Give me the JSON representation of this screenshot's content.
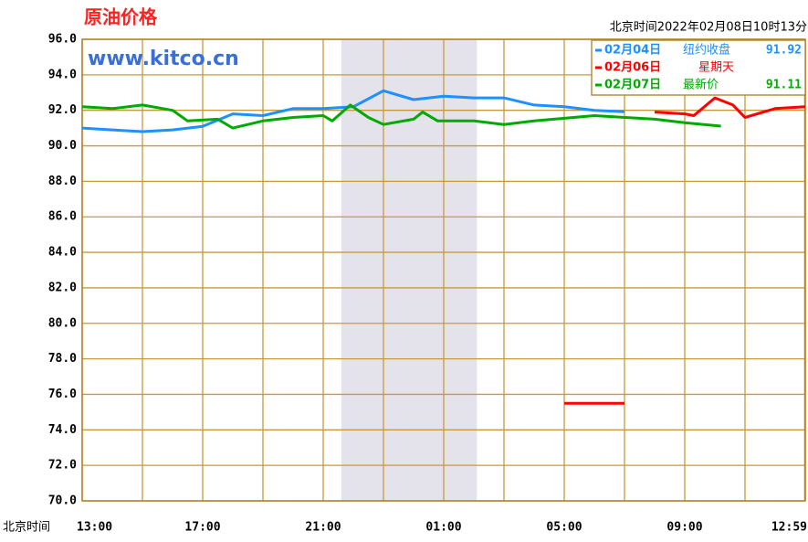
{
  "chart_data": {
    "type": "line",
    "title": "原油价格",
    "watermark": "www.kitco.cn",
    "timestamp": "北京时间2022年02月08日10时13分",
    "x_label": "北京时间",
    "xlim": [
      0,
      24
    ],
    "xticks": [
      {
        "value": 0,
        "label": "13:00"
      },
      {
        "value": 4,
        "label": "17:00"
      },
      {
        "value": 8,
        "label": "21:00"
      },
      {
        "value": 12,
        "label": "01:00"
      },
      {
        "value": 16,
        "label": "05:00"
      },
      {
        "value": 20,
        "label": "09:00"
      },
      {
        "value": 23.98,
        "label": "12:59"
      }
    ],
    "x_minor_grid": [
      2,
      6,
      10,
      14,
      18,
      22,
      24
    ],
    "shaded_range": [
      8.6,
      13.1
    ],
    "ylim": [
      70,
      96
    ],
    "yticks": [
      {
        "value": 70,
        "label": "70.0"
      },
      {
        "value": 72,
        "label": "72.0"
      },
      {
        "value": 74,
        "label": "74.0"
      },
      {
        "value": 76,
        "label": "76.0"
      },
      {
        "value": 78,
        "label": "78.0"
      },
      {
        "value": 80,
        "label": "80.0"
      },
      {
        "value": 82,
        "label": "82.0"
      },
      {
        "value": 84,
        "label": "84.0"
      },
      {
        "value": 86,
        "label": "86.0"
      },
      {
        "value": 88,
        "label": "88.0"
      },
      {
        "value": 90,
        "label": "90.0"
      },
      {
        "value": 92,
        "label": "92.0"
      },
      {
        "value": 94,
        "label": "94.0"
      },
      {
        "value": 96,
        "label": "96.0"
      }
    ],
    "grid": true,
    "legend_position": "top-right",
    "series": [
      {
        "name": "02月04日",
        "status": "纽约收盘",
        "price": 91.92,
        "color": "#1e90ff",
        "x": [
          0,
          1,
          2,
          3,
          4,
          5,
          6,
          7,
          8,
          9,
          10,
          11,
          12,
          13,
          14,
          15,
          16,
          17,
          18
        ],
        "values": [
          91.0,
          90.9,
          90.8,
          90.9,
          91.1,
          91.8,
          91.7,
          92.1,
          92.1,
          92.2,
          93.1,
          92.6,
          92.8,
          92.7,
          92.7,
          92.3,
          92.2,
          92.0,
          91.92
        ]
      },
      {
        "name": "02月06日",
        "status": "星期天",
        "color": "#ff0000",
        "x": [
          16,
          18,
          18,
          19,
          20,
          20.3,
          21,
          21.6,
          22,
          23,
          24
        ],
        "values": [
          75.5,
          75.5,
          null,
          91.9,
          91.8,
          91.7,
          92.7,
          92.3,
          91.6,
          92.1,
          92.2
        ]
      },
      {
        "name": "02月07日",
        "status": "最新价",
        "price": 91.11,
        "color": "#00aa00",
        "x": [
          0,
          1,
          2,
          3,
          3.5,
          4.5,
          5,
          6,
          7,
          8,
          8.3,
          8.9,
          9.5,
          10,
          11,
          11.3,
          11.8,
          13,
          14,
          15,
          17,
          19,
          20,
          21.2
        ],
        "values": [
          92.2,
          92.1,
          92.3,
          92.0,
          91.4,
          91.5,
          91.0,
          91.4,
          91.6,
          91.7,
          91.4,
          92.3,
          91.6,
          91.2,
          91.5,
          91.9,
          91.4,
          91.4,
          91.2,
          91.4,
          91.7,
          91.5,
          91.3,
          91.11
        ]
      }
    ]
  }
}
